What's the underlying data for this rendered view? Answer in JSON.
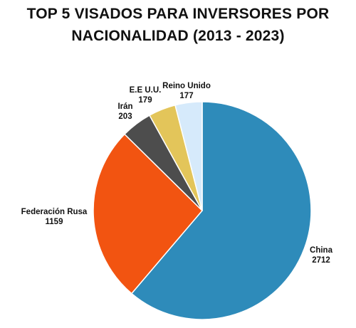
{
  "title": {
    "line1": "TOP 5 VISADOS PARA INVERSORES POR",
    "line2": "NACIONALIDAD (2013 - 2023)"
  },
  "chart_data": {
    "type": "pie",
    "title": "TOP 5 VISADOS PARA INVERSORES POR NACIONALIDAD (2013 - 2023)",
    "start": "12 o'clock, clockwise",
    "slices": [
      {
        "label": "China",
        "value": 2712,
        "color": "#2e8bba"
      },
      {
        "label": "Federación Rusa",
        "value": 1159,
        "color": "#f25411"
      },
      {
        "label": "Irán",
        "value": 203,
        "color": "#4d4d4d"
      },
      {
        "label": "E.E U.U.",
        "value": 179,
        "color": "#e3c55a"
      },
      {
        "label": "Reino Unido",
        "value": 177,
        "color": "#d6eafb"
      }
    ]
  }
}
